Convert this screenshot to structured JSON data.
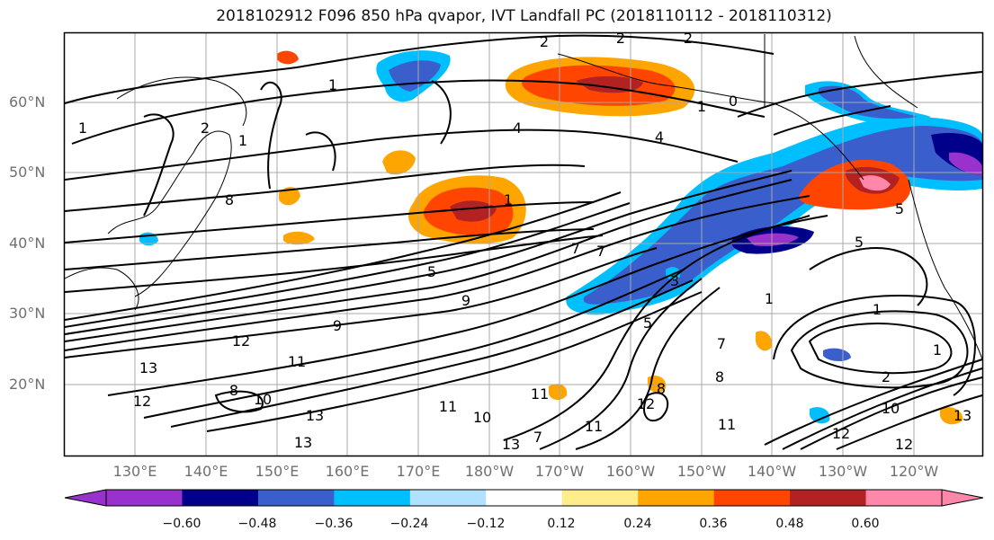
{
  "title": "2018102912 F096 850 hPa qvapor, IVT Landfall PC (2018110112 - 2018110312)",
  "lat_labels": [
    "60°N",
    "50°N",
    "40°N",
    "30°N",
    "20°N"
  ],
  "lon_labels": [
    "130°E",
    "140°E",
    "150°E",
    "160°E",
    "170°E",
    "180°W",
    "170°W",
    "160°W",
    "150°W",
    "140°W",
    "130°W",
    "120°W"
  ],
  "colorbar": {
    "tick_labels": [
      "−0.60",
      "−0.48",
      "−0.36",
      "−0.24",
      "−0.12",
      "0.12",
      "0.24",
      "0.36",
      "0.48",
      "0.60"
    ],
    "colors": [
      "#9932cc",
      "#00008b",
      "#3a5fcd",
      "#00bfff",
      "#b0e2ff",
      "#ffffff",
      "#ffec8b",
      "#ffa500",
      "#ff4500",
      "#b22222",
      "#ff88aa"
    ]
  },
  "contour_labels": [
    "2",
    "2",
    "2",
    "1",
    "1",
    "1",
    "0",
    "4",
    "4",
    "1",
    "1",
    "2",
    "5",
    "7",
    "7",
    "1",
    "1",
    "3",
    "5",
    "5",
    "7",
    "8",
    "8",
    "9",
    "12",
    "13",
    "11",
    "12",
    "8",
    "10",
    "13",
    "11",
    "10",
    "11",
    "11",
    "12",
    "12",
    "13",
    "5",
    "9",
    "11",
    "13",
    "12",
    "10",
    "13",
    "1",
    "8",
    "2",
    "7"
  ]
}
